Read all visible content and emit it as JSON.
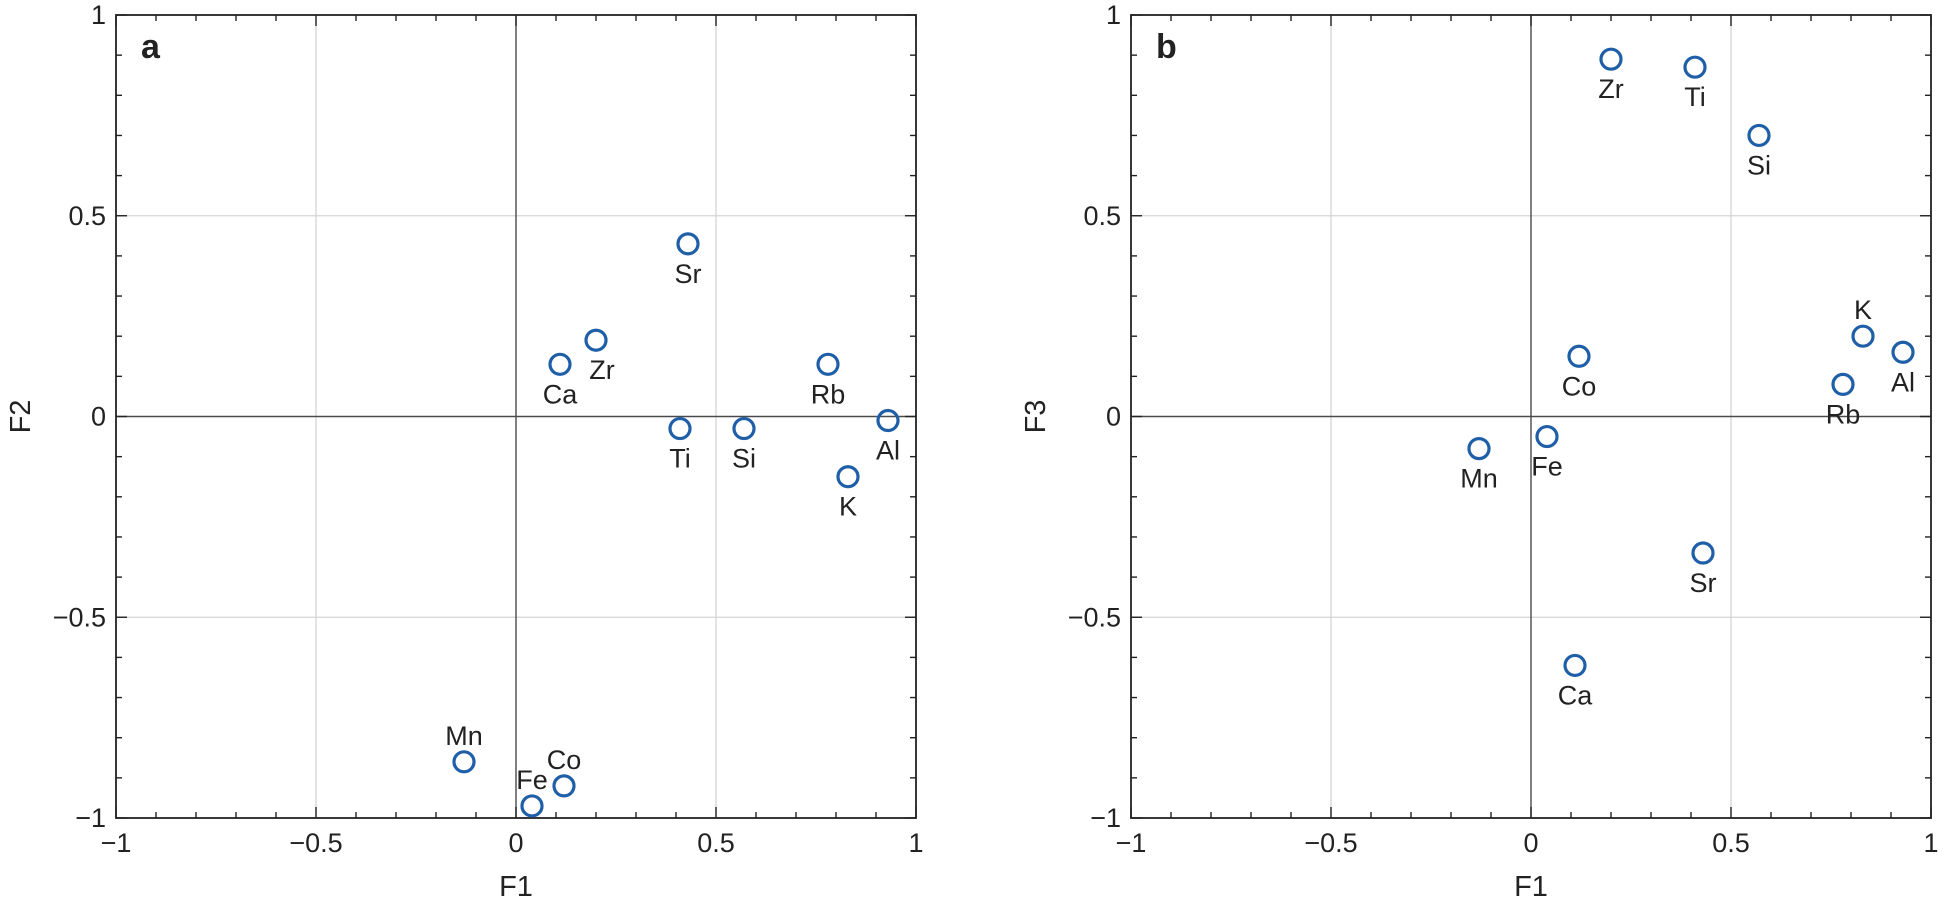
{
  "chart_data": [
    {
      "type": "scatter",
      "panel_label": "a",
      "xlabel": "F1",
      "ylabel": "F2",
      "xlim": [
        -1,
        1
      ],
      "ylim": [
        -1,
        1
      ],
      "xticks": [
        -1,
        -0.5,
        0,
        0.5,
        1
      ],
      "yticks": [
        -1,
        -0.5,
        0,
        0.5,
        1
      ],
      "xtick_labels": [
        "−1",
        "−0.5",
        "0",
        "0.5",
        "1"
      ],
      "ytick_labels": [
        "−1",
        "−0.5",
        "0",
        "0.5",
        "1"
      ],
      "grid": true,
      "marker": "open-circle",
      "marker_color": "#1f5fa8",
      "points": [
        {
          "label": "Sr",
          "x": 0.43,
          "y": 0.43,
          "label_pos": "below"
        },
        {
          "label": "Ca",
          "x": 0.11,
          "y": 0.13,
          "label_pos": "below"
        },
        {
          "label": "Zr",
          "x": 0.2,
          "y": 0.19,
          "label_pos": "below-right"
        },
        {
          "label": "Rb",
          "x": 0.78,
          "y": 0.13,
          "label_pos": "below"
        },
        {
          "label": "Ti",
          "x": 0.41,
          "y": -0.03,
          "label_pos": "below"
        },
        {
          "label": "Si",
          "x": 0.57,
          "y": -0.03,
          "label_pos": "below"
        },
        {
          "label": "Al",
          "x": 0.93,
          "y": -0.01,
          "label_pos": "below"
        },
        {
          "label": "K",
          "x": 0.83,
          "y": -0.15,
          "label_pos": "below"
        },
        {
          "label": "Mn",
          "x": -0.13,
          "y": -0.86,
          "label_pos": "above"
        },
        {
          "label": "Co",
          "x": 0.12,
          "y": -0.92,
          "label_pos": "above"
        },
        {
          "label": "Fe",
          "x": 0.04,
          "y": -0.97,
          "label_pos": "above"
        }
      ]
    },
    {
      "type": "scatter",
      "panel_label": "b",
      "xlabel": "F1",
      "ylabel": "F3",
      "xlim": [
        -1,
        1
      ],
      "ylim": [
        -1,
        1
      ],
      "xticks": [
        -1,
        -0.5,
        0,
        0.5,
        1
      ],
      "yticks": [
        -1,
        -0.5,
        0,
        0.5,
        1
      ],
      "xtick_labels": [
        "−1",
        "−0.5",
        "0",
        "0.5",
        "1"
      ],
      "ytick_labels": [
        "−1",
        "−0.5",
        "0",
        "0.5",
        "1"
      ],
      "grid": true,
      "marker": "open-circle",
      "marker_color": "#1f5fa8",
      "points": [
        {
          "label": "Zr",
          "x": 0.2,
          "y": 0.89,
          "label_pos": "below"
        },
        {
          "label": "Ti",
          "x": 0.41,
          "y": 0.87,
          "label_pos": "below"
        },
        {
          "label": "Si",
          "x": 0.57,
          "y": 0.7,
          "label_pos": "below"
        },
        {
          "label": "K",
          "x": 0.83,
          "y": 0.2,
          "label_pos": "above"
        },
        {
          "label": "Al",
          "x": 0.93,
          "y": 0.16,
          "label_pos": "below"
        },
        {
          "label": "Rb",
          "x": 0.78,
          "y": 0.08,
          "label_pos": "below"
        },
        {
          "label": "Co",
          "x": 0.12,
          "y": 0.15,
          "label_pos": "below"
        },
        {
          "label": "Mn",
          "x": -0.13,
          "y": -0.08,
          "label_pos": "below"
        },
        {
          "label": "Fe",
          "x": 0.04,
          "y": -0.05,
          "label_pos": "below"
        },
        {
          "label": "Sr",
          "x": 0.43,
          "y": -0.34,
          "label_pos": "below"
        },
        {
          "label": "Ca",
          "x": 0.11,
          "y": -0.62,
          "label_pos": "below"
        }
      ]
    }
  ]
}
